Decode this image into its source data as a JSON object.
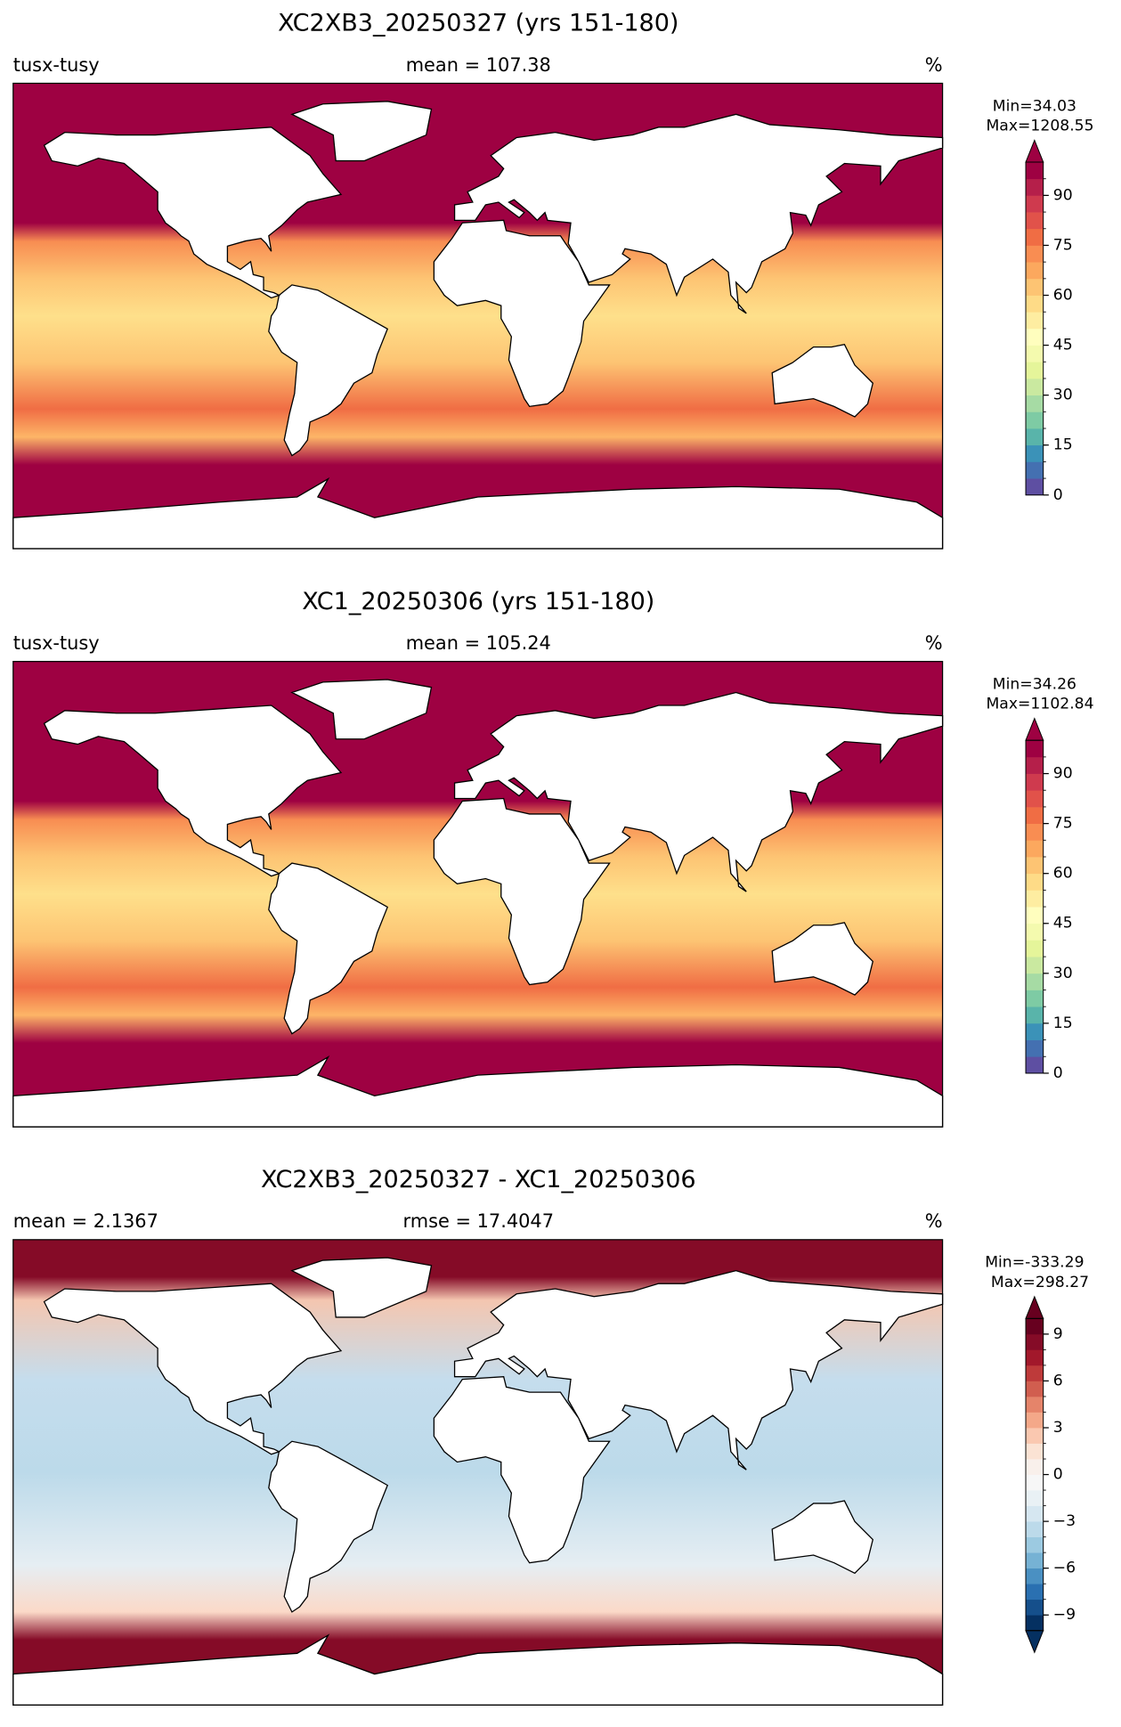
{
  "panels": [
    {
      "title": "XC2XB3_20250327 (yrs 151-180)",
      "left_label": "tusx-tusy",
      "center_label": "mean = 107.38",
      "units": "%",
      "min_label": "Min=34.03",
      "max_label": "Max=1208.55",
      "colorbar": {
        "lim": [
          0,
          100
        ],
        "ticks": [
          0,
          15,
          30,
          45,
          60,
          75,
          90
        ],
        "extend": "max",
        "over_color": "#9e0142",
        "colors": [
          "#5e4fa2",
          "#4470b1",
          "#3b92b8",
          "#59b4aa",
          "#7ecba4",
          "#a6dba4",
          "#cae9a0",
          "#e5f59a",
          "#f4faae",
          "#fffebe",
          "#feeda1",
          "#fedb87",
          "#fdc473",
          "#fca85e",
          "#f98d52",
          "#f06d44",
          "#e1524a",
          "#cf3a4e",
          "#b51f4a",
          "#9e0142"
        ]
      }
    },
    {
      "title": "XC1_20250306 (yrs 151-180)",
      "left_label": "tusx-tusy",
      "center_label": "mean = 105.24",
      "units": "%",
      "min_label": "Min=34.26",
      "max_label": "Max=1102.84",
      "colorbar": {
        "lim": [
          0,
          100
        ],
        "ticks": [
          0,
          15,
          30,
          45,
          60,
          75,
          90
        ],
        "extend": "max",
        "over_color": "#9e0142",
        "colors": [
          "#5e4fa2",
          "#4470b1",
          "#3b92b8",
          "#59b4aa",
          "#7ecba4",
          "#a6dba4",
          "#cae9a0",
          "#e5f59a",
          "#f4faae",
          "#fffebe",
          "#feeda1",
          "#fedb87",
          "#fdc473",
          "#fca85e",
          "#f98d52",
          "#f06d44",
          "#e1524a",
          "#cf3a4e",
          "#b51f4a",
          "#9e0142"
        ]
      }
    },
    {
      "title": "XC2XB3_20250327 - XC1_20250306",
      "left_label": "mean = 2.1367",
      "center_label": "rmse = 17.4047",
      "units": "%",
      "min_label": "Min=-333.29",
      "max_label": "Max=298.27",
      "colorbar": {
        "lim": [
          -10,
          10
        ],
        "ticks": [
          {
            "value": -9,
            "label": "−9"
          },
          {
            "value": -6,
            "label": "−6"
          },
          {
            "value": -3,
            "label": "−3"
          },
          0,
          3,
          6,
          9
        ],
        "extend": "both",
        "under_color": "#053061",
        "over_color": "#67001f",
        "colors": [
          "#053061",
          "#154f8b",
          "#2a70b1",
          "#4a90c2",
          "#76b2d4",
          "#9ccae1",
          "#bcdaea",
          "#d6e7f1",
          "#e9f1f5",
          "#f7f7f7",
          "#f9f0eb",
          "#fbe3d4",
          "#fac8b0",
          "#f4a889",
          "#e5846a",
          "#d15e4f",
          "#be3a3a",
          "#a2182b",
          "#850b27",
          "#67001f"
        ]
      }
    }
  ]
}
